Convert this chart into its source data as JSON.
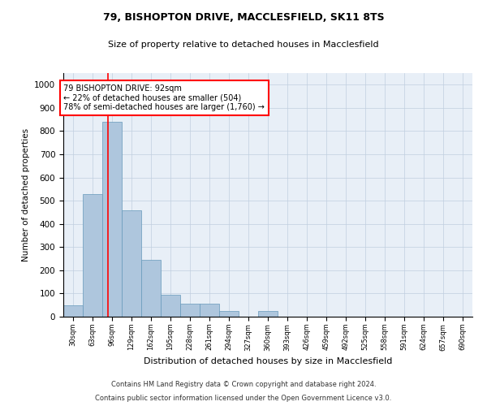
{
  "title1": "79, BISHOPTON DRIVE, MACCLESFIELD, SK11 8TS",
  "title2": "Size of property relative to detached houses in Macclesfield",
  "xlabel": "Distribution of detached houses by size in Macclesfield",
  "ylabel": "Number of detached properties",
  "footer1": "Contains HM Land Registry data © Crown copyright and database right 2024.",
  "footer2": "Contains public sector information licensed under the Open Government Licence v3.0.",
  "bar_color": "#aec6dd",
  "bar_edge_color": "#6699bb",
  "bg_color": "#e8eff7",
  "annotation_line1": "79 BISHOPTON DRIVE: 92sqm",
  "annotation_line2": "← 22% of detached houses are smaller (504)",
  "annotation_line3": "78% of semi-detached houses are larger (1,760) →",
  "property_sqm": 92,
  "red_line_x": 92,
  "categories": [
    "30sqm",
    "63sqm",
    "96sqm",
    "129sqm",
    "162sqm",
    "195sqm",
    "228sqm",
    "261sqm",
    "294sqm",
    "327sqm",
    "360sqm",
    "393sqm",
    "426sqm",
    "459sqm",
    "492sqm",
    "525sqm",
    "558sqm",
    "591sqm",
    "624sqm",
    "657sqm",
    "690sqm"
  ],
  "bin_edges": [
    16.5,
    49.5,
    82.5,
    115.5,
    148.5,
    181.5,
    214.5,
    247.5,
    280.5,
    313.5,
    346.5,
    379.5,
    412.5,
    445.5,
    478.5,
    511.5,
    544.5,
    577.5,
    610.5,
    643.5,
    676.5,
    709.5
  ],
  "values": [
    50,
    530,
    840,
    460,
    245,
    95,
    55,
    55,
    25,
    0,
    25,
    0,
    0,
    0,
    0,
    0,
    0,
    0,
    0,
    0,
    0
  ],
  "ylim": [
    0,
    1050
  ],
  "yticks": [
    0,
    100,
    200,
    300,
    400,
    500,
    600,
    700,
    800,
    900,
    1000
  ],
  "grid_color": "#c0cfe0"
}
